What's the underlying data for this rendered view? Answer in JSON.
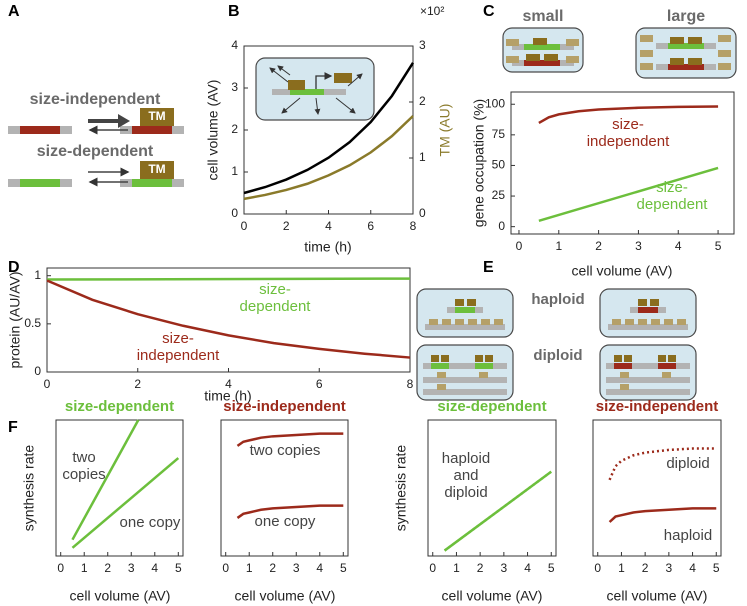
{
  "panel_labels": [
    "A",
    "B",
    "C",
    "D",
    "E",
    "F"
  ],
  "panel_a": {
    "size_independent": "size-independent",
    "size_dependent": "size-dependent",
    "tm": [
      "TM",
      "TM"
    ]
  },
  "panel_c": {
    "small": "small",
    "large": "large"
  },
  "panel_e": {
    "haploid": "haploid",
    "diploid": "diploid"
  },
  "chart_data": [
    {
      "type": "line",
      "xlabel": "time (h)",
      "ylabel": "cell volume (AV)",
      "y2label": "TM (AU)",
      "y2_multiplier": "×10²",
      "xlim": [
        0,
        8
      ],
      "xticks": [
        0,
        2,
        4,
        6,
        8
      ],
      "ylim": [
        0,
        4
      ],
      "yticks": [
        0,
        1,
        2,
        3,
        4
      ],
      "y2lim": [
        0,
        3
      ],
      "y2ticks": [
        0,
        1,
        2,
        3
      ],
      "series": [
        {
          "color": "#000000",
          "x": [
            0,
            1,
            2,
            3,
            4,
            5,
            6,
            7,
            8
          ],
          "values": [
            0.5,
            0.64,
            0.82,
            1.05,
            1.34,
            1.71,
            2.19,
            2.81,
            3.6
          ]
        },
        {
          "color": "#8a7a2a",
          "axis": "y2",
          "x": [
            0,
            1,
            2,
            3,
            4,
            5,
            6,
            7,
            8
          ],
          "values": [
            0.27,
            0.34,
            0.43,
            0.54,
            0.69,
            0.87,
            1.1,
            1.39,
            1.75
          ]
        }
      ]
    },
    {
      "type": "line",
      "xlabel": "cell volume (AV)",
      "ylabel": "gene occupation (%)",
      "xlim": [
        -0.2,
        5.4
      ],
      "xticks": [
        0,
        1,
        2,
        3,
        4,
        5
      ],
      "ylim": [
        -6,
        110
      ],
      "yticks": [
        0,
        25,
        50,
        75,
        100
      ],
      "series": [
        {
          "color": "#9c2a1b",
          "label": [
            "size-",
            "independent"
          ],
          "x": [
            0.5,
            0.75,
            1,
            1.5,
            2,
            3,
            4,
            5
          ],
          "values": [
            84.7,
            89.3,
            91.7,
            94.3,
            95.7,
            97.1,
            97.8,
            98.2
          ]
        },
        {
          "color": "#6cbf3c",
          "label": [
            "size-",
            "dependent"
          ],
          "x": [
            0.5,
            5
          ],
          "values": [
            4.8,
            48
          ]
        }
      ]
    },
    {
      "type": "line",
      "xlabel": "time (h)",
      "ylabel": "protein (AU/AV)",
      "xlim": [
        0,
        8
      ],
      "xticks": [
        0,
        2,
        4,
        6,
        8
      ],
      "ylim": [
        0,
        1.08
      ],
      "yticks": [
        0,
        0.5,
        1
      ],
      "series": [
        {
          "color": "#6cbf3c",
          "label": [
            "size-",
            "dependent"
          ],
          "x": [
            0,
            8
          ],
          "values": [
            0.96,
            0.97
          ]
        },
        {
          "color": "#9c2a1b",
          "label": [
            "size-",
            "independent"
          ],
          "x": [
            0,
            1,
            2,
            3,
            4,
            5,
            6,
            7,
            8
          ],
          "values": [
            0.95,
            0.75,
            0.6,
            0.48,
            0.38,
            0.3,
            0.24,
            0.19,
            0.15
          ]
        }
      ]
    },
    {
      "type": "line",
      "title": "size-dependent",
      "title_color": "#6cbf3c",
      "xlabel": "cell volume (AV)",
      "ylabel": "synthesis rate",
      "xlim": [
        -0.2,
        5.2
      ],
      "xticks": [
        0,
        1,
        2,
        3,
        4,
        5
      ],
      "ylim": [
        0,
        1
      ],
      "series": [
        {
          "color": "#6cbf3c",
          "label": [
            "two",
            "copies"
          ],
          "x": [
            0.5,
            3.3
          ],
          "values": [
            0.12,
            1.0
          ]
        },
        {
          "color": "#6cbf3c",
          "label": [
            "one copy"
          ],
          "x": [
            0.5,
            5
          ],
          "values": [
            0.06,
            0.72
          ]
        }
      ]
    },
    {
      "type": "line",
      "title": "size-independent",
      "title_color": "#9c2a1b",
      "xlabel": "cell volume (AV)",
      "xlim": [
        -0.2,
        5.2
      ],
      "xticks": [
        0,
        1,
        2,
        3,
        4,
        5
      ],
      "ylim": [
        0,
        1
      ],
      "series": [
        {
          "color": "#9c2a1b",
          "label": [
            "two copies"
          ],
          "x": [
            0.5,
            0.75,
            1,
            1.5,
            2,
            3,
            4,
            5
          ],
          "values": [
            0.81,
            0.84,
            0.85,
            0.87,
            0.88,
            0.89,
            0.9,
            0.9
          ]
        },
        {
          "color": "#9c2a1b",
          "label": [
            "one copy"
          ],
          "x": [
            0.5,
            0.75,
            1,
            1.5,
            2,
            3,
            4,
            5
          ],
          "values": [
            0.28,
            0.31,
            0.32,
            0.34,
            0.35,
            0.36,
            0.37,
            0.37
          ]
        }
      ]
    },
    {
      "type": "line",
      "title": "size-dependent",
      "title_color": "#6cbf3c",
      "xlabel": "cell volume (AV)",
      "ylabel": "synthesis rate",
      "xlim": [
        -0.2,
        5.2
      ],
      "xticks": [
        0,
        1,
        2,
        3,
        4,
        5
      ],
      "ylim": [
        0,
        1
      ],
      "series": [
        {
          "color": "#9fd97a",
          "dash": "dotted",
          "x": [
            0.5,
            5
          ],
          "values": [
            0.04,
            0.62
          ]
        },
        {
          "color": "#6cbf3c",
          "label": [
            "haploid",
            "and",
            "diploid"
          ],
          "x": [
            0.5,
            5
          ],
          "values": [
            0.04,
            0.62
          ]
        }
      ]
    },
    {
      "type": "line",
      "title": "size-independent",
      "title_color": "#9c2a1b",
      "xlabel": "cell volume (AV)",
      "xlim": [
        -0.2,
        5.2
      ],
      "xticks": [
        0,
        1,
        2,
        3,
        4,
        5
      ],
      "ylim": [
        0,
        1
      ],
      "series": [
        {
          "color": "#9c2a1b",
          "dash": "dotted",
          "label": [
            "diploid"
          ],
          "x": [
            0.5,
            0.75,
            1,
            1.5,
            2,
            3,
            4,
            5
          ],
          "values": [
            0.56,
            0.66,
            0.7,
            0.74,
            0.76,
            0.78,
            0.79,
            0.79
          ]
        },
        {
          "color": "#9c2a1b",
          "label": [
            "haploid"
          ],
          "x": [
            0.5,
            0.75,
            1,
            1.5,
            2,
            3,
            4,
            5
          ],
          "values": [
            0.25,
            0.29,
            0.3,
            0.32,
            0.33,
            0.34,
            0.35,
            0.35
          ]
        }
      ]
    }
  ]
}
